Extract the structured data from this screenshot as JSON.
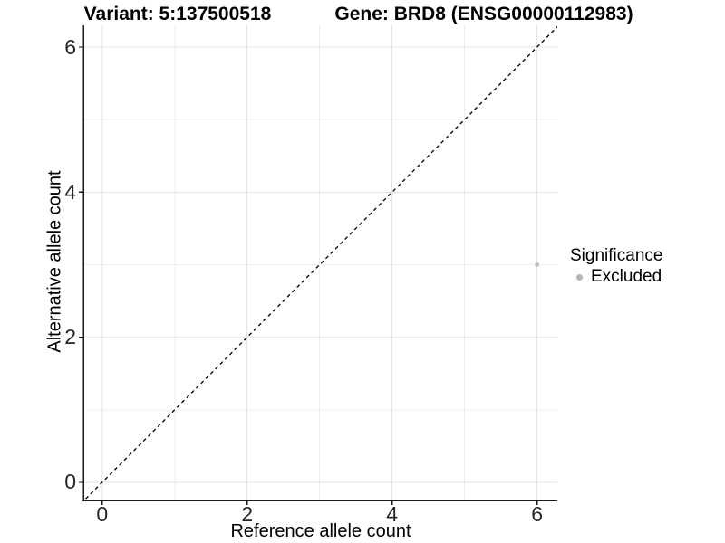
{
  "chart_data": {
    "type": "scatter",
    "title_left": "Variant: 5:137500518",
    "title_right": "Gene: BRD8 (ENSG00000112983)",
    "xlabel": "Reference allele count",
    "ylabel": "Alternative allele count",
    "xlim": [
      -0.26,
      6.28
    ],
    "ylim": [
      -0.25,
      6.3
    ],
    "x_ticks": [
      0,
      2,
      4,
      6
    ],
    "y_ticks": [
      0,
      2,
      4,
      6
    ],
    "x_minor_ticks": [
      1,
      3,
      5
    ],
    "y_minor_ticks": [
      1,
      3,
      5
    ],
    "grid": "major+minor",
    "identity_line": {
      "slope": 1,
      "intercept": 0,
      "style": "dashed",
      "color": "#000000"
    },
    "series": [
      {
        "name": "Excluded",
        "color": "#bdbdbd",
        "point_radius": 2.4,
        "points": [
          {
            "x": 6,
            "y": 3
          }
        ]
      }
    ],
    "legend": {
      "position": "right",
      "title": "Significance",
      "items": [
        {
          "label": "Excluded",
          "color": "#b5b5b5",
          "marker": "circle"
        }
      ]
    },
    "colors": {
      "background": "#ffffff",
      "axis_line": "#1a1a1a",
      "tick_label": "#262626",
      "grid_major": "#e3e3e3",
      "grid_minor": "#eeeeee",
      "title": "#000000"
    }
  }
}
